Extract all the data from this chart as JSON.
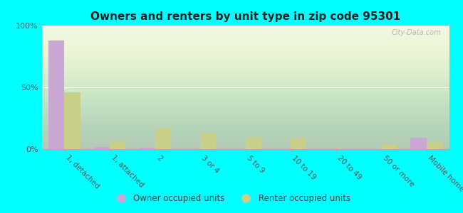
{
  "title": "Owners and renters by unit type in zip code 95301",
  "categories": [
    "1, detached",
    "1, attached",
    "2",
    "3 or 4",
    "5 to 9",
    "10 to 19",
    "20 to 49",
    "50 or more",
    "Mobile home"
  ],
  "owner_values": [
    88,
    2,
    1,
    0,
    0,
    0,
    0,
    0,
    9
  ],
  "renter_values": [
    46,
    7,
    17,
    13,
    10,
    9,
    0,
    4,
    6
  ],
  "owner_color": "#c9a8d4",
  "renter_color": "#c8cf8a",
  "background_color": "#00ffff",
  "plot_bg_color": "#eef5e4",
  "ylim": [
    0,
    100
  ],
  "yticks": [
    0,
    50,
    100
  ],
  "ytick_labels": [
    "0%",
    "50%",
    "100%"
  ],
  "bar_width": 0.35,
  "legend_owner": "Owner occupied units",
  "legend_renter": "Renter occupied units",
  "watermark": "City-Data.com"
}
